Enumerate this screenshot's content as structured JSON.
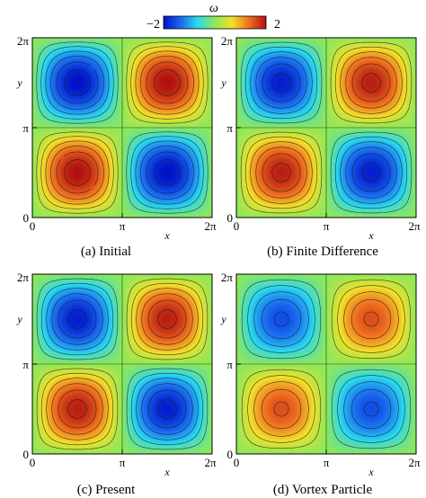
{
  "colorbar": {
    "label": "ω",
    "min_label": "−2",
    "max_label": "2",
    "range": [
      -2,
      2
    ],
    "colormap": "jet-like (blue → cyan → green → yellow → red)"
  },
  "axis_labels": {
    "x": "x",
    "y": "y"
  },
  "tick_labels": {
    "zero": "0",
    "pi": "π",
    "two_pi": "2π"
  },
  "chart_data": [
    {
      "type": "heatmap",
      "title": "(a) Initial",
      "field": "ω(x, y) on [0, 2π] × [0, 2π]",
      "pattern": "2×2 cells: lower-left positive, upper-right positive, upper-left negative, lower-right negative",
      "xlim": [
        0,
        6.2832
      ],
      "ylim": [
        0,
        6.2832
      ],
      "xticks": [
        "0",
        "π",
        "2π"
      ],
      "yticks": [
        "0",
        "π",
        "2π"
      ],
      "xlabel": "x",
      "ylabel": "y",
      "amplitude": 2.0,
      "contours": true
    },
    {
      "type": "heatmap",
      "title": "(b) Finite Difference",
      "field": "ω(x, y) on [0, 2π] × [0, 2π]",
      "pattern": "2×2 cells: lower-left positive, upper-right positive, upper-left negative, lower-right negative",
      "xlim": [
        0,
        6.2832
      ],
      "ylim": [
        0,
        6.2832
      ],
      "xticks": [
        "0",
        "π",
        "2π"
      ],
      "yticks": [
        "0",
        "π",
        "2π"
      ],
      "xlabel": "x",
      "ylabel": "y",
      "amplitude": 1.9,
      "contours": true
    },
    {
      "type": "heatmap",
      "title": "(c) Present",
      "field": "ω(x, y) on [0, 2π] × [0, 2π]",
      "pattern": "2×2 cells: lower-left positive, upper-right positive, upper-left negative, lower-right negative",
      "xlim": [
        0,
        6.2832
      ],
      "ylim": [
        0,
        6.2832
      ],
      "xticks": [
        "0",
        "π",
        "2π"
      ],
      "yticks": [
        "0",
        "π",
        "2π"
      ],
      "xlabel": "x",
      "ylabel": "y",
      "amplitude": 1.9,
      "contours": true
    },
    {
      "type": "heatmap",
      "title": "(d) Vortex Particle",
      "field": "ω(x, y) on [0, 2π] × [0, 2π]",
      "pattern": "2×2 cells: lower-left positive, upper-right positive, upper-left negative, lower-right negative",
      "xlim": [
        0,
        6.2832
      ],
      "ylim": [
        0,
        6.2832
      ],
      "xticks": [
        "0",
        "π",
        "2π"
      ],
      "yticks": [
        "0",
        "π",
        "2π"
      ],
      "xlabel": "x",
      "ylabel": "y",
      "amplitude": 1.55,
      "contours": true
    }
  ]
}
